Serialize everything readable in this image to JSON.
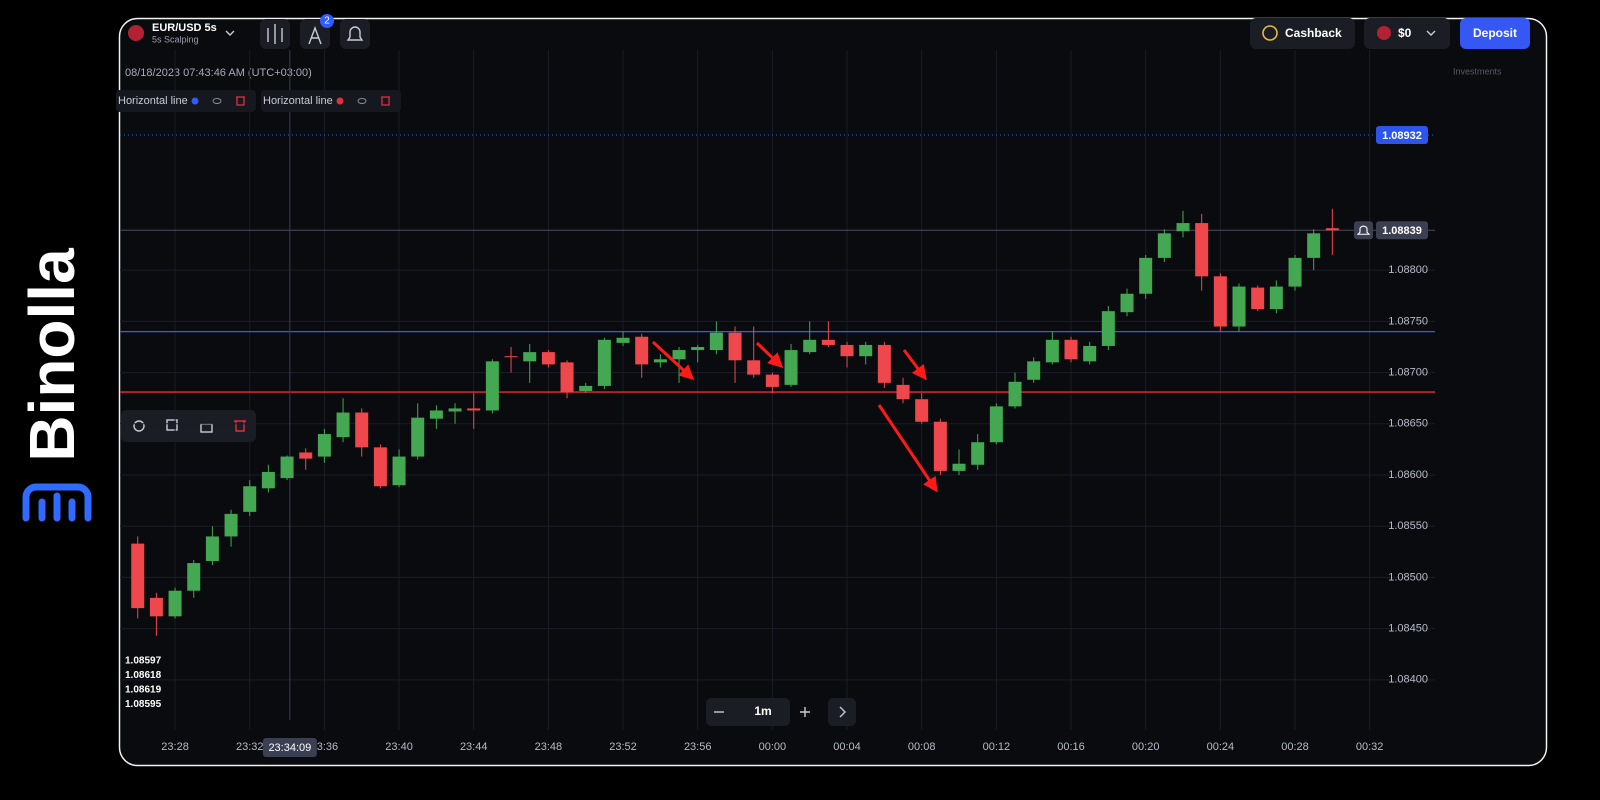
{
  "brand": "Binolla",
  "header": {
    "asset": "EUR/USD 5s",
    "mode": "5s Scalping",
    "badge": "2",
    "cashback": "Cashback",
    "balance": "$0",
    "deposit": "Deposit",
    "investments": "Investments"
  },
  "datetime": "08/18/2023 07:43:46 AM (UTC+03:00)",
  "timeframe": "1m",
  "drawings": [
    {
      "label": "Horizontal line",
      "color": "#2f5bff",
      "value": 1.0874
    },
    {
      "label": "Horizontal line",
      "color": "#e0303c",
      "value": 1.08681
    }
  ],
  "chart_data": {
    "type": "candlestick",
    "up_color": "#43a851",
    "down_color": "#f0474c",
    "x": [
      1406,
      1407,
      1408,
      1409,
      1410,
      1411,
      1412,
      1413,
      1414,
      1415,
      1416,
      1417,
      1418,
      1419,
      1420,
      1421,
      1422,
      1423,
      1424,
      1425,
      1426,
      1427,
      1428,
      1429,
      1430,
      1431,
      1432,
      1433,
      1434,
      1435,
      1436,
      1437,
      1438,
      1439,
      1440,
      1441,
      1442,
      1443,
      1444,
      1445,
      1446,
      1447,
      1448,
      1449,
      1450,
      1451,
      1452,
      1453,
      1454,
      1455,
      1456,
      1457,
      1458,
      1459,
      1460,
      1461,
      1462,
      1463,
      1464,
      1465,
      1466,
      1467,
      1468,
      1469,
      1470
    ],
    "open": [
      1.08533,
      1.0848,
      1.08462,
      1.08487,
      1.08516,
      1.0854,
      1.08564,
      1.08587,
      1.08597,
      1.08622,
      1.08618,
      1.08637,
      1.08661,
      1.08627,
      1.0859,
      1.08618,
      1.08655,
      1.08662,
      1.08665,
      1.08663,
      1.08716,
      1.08711,
      1.0872,
      1.0871,
      1.08682,
      1.08687,
      1.08729,
      1.08735,
      1.0871,
      1.08713,
      1.08722,
      1.08722,
      1.08739,
      1.08712,
      1.08698,
      1.08688,
      1.0872,
      1.08732,
      1.08727,
      1.08716,
      1.08727,
      1.08688,
      1.08674,
      1.08652,
      1.08604,
      1.0861,
      1.08632,
      1.08667,
      1.08693,
      1.0871,
      1.08732,
      1.08711,
      1.08726,
      1.08759,
      1.08777,
      1.08812,
      1.08838,
      1.08846,
      1.08794,
      1.08745,
      1.08783,
      1.08762,
      1.08784,
      1.08812,
      1.08841
    ],
    "high": [
      1.0854,
      1.08485,
      1.0849,
      1.08517,
      1.0855,
      1.08566,
      1.08595,
      1.0861,
      1.08619,
      1.08626,
      1.08645,
      1.08675,
      1.08665,
      1.0863,
      1.08625,
      1.0867,
      1.08668,
      1.0867,
      1.0868,
      1.08713,
      1.08725,
      1.08728,
      1.08722,
      1.08712,
      1.0869,
      1.08734,
      1.0874,
      1.08738,
      1.08718,
      1.08725,
      1.08727,
      1.0875,
      1.08745,
      1.08745,
      1.087,
      1.08728,
      1.0875,
      1.0875,
      1.0873,
      1.0873,
      1.0873,
      1.08695,
      1.0868,
      1.08655,
      1.08625,
      1.0864,
      1.0867,
      1.087,
      1.08715,
      1.0874,
      1.08735,
      1.0873,
      1.08765,
      1.08782,
      1.08815,
      1.0884,
      1.08858,
      1.08855,
      1.08797,
      1.08787,
      1.08785,
      1.0879,
      1.08815,
      1.0884,
      1.0886
    ],
    "low": [
      1.0846,
      1.08443,
      1.0846,
      1.0848,
      1.08512,
      1.0853,
      1.0856,
      1.08583,
      1.08595,
      1.08605,
      1.08612,
      1.08632,
      1.08618,
      1.08587,
      1.08588,
      1.08615,
      1.08645,
      1.0865,
      1.08645,
      1.0866,
      1.087,
      1.0869,
      1.08705,
      1.08675,
      1.0868,
      1.08684,
      1.08726,
      1.08695,
      1.08705,
      1.0869,
      1.0871,
      1.08718,
      1.0869,
      1.08695,
      1.0868,
      1.08686,
      1.08718,
      1.08725,
      1.08705,
      1.08708,
      1.08685,
      1.0867,
      1.0865,
      1.086,
      1.086,
      1.08605,
      1.0863,
      1.08665,
      1.0869,
      1.08708,
      1.0871,
      1.08708,
      1.08722,
      1.08755,
      1.08772,
      1.08808,
      1.08832,
      1.0878,
      1.0874,
      1.0874,
      1.0876,
      1.08758,
      1.0878,
      1.088,
      1.08815
    ],
    "close": [
      1.0847,
      1.08462,
      1.08487,
      1.08514,
      1.0854,
      1.08562,
      1.08589,
      1.08603,
      1.08618,
      1.08616,
      1.0864,
      1.08661,
      1.08627,
      1.08589,
      1.08618,
      1.08656,
      1.08663,
      1.08665,
      1.08663,
      1.08711,
      1.08715,
      1.0872,
      1.08708,
      1.08681,
      1.08687,
      1.08732,
      1.08734,
      1.08708,
      1.08713,
      1.08722,
      1.08725,
      1.08739,
      1.08712,
      1.08698,
      1.08686,
      1.08722,
      1.08732,
      1.08727,
      1.08716,
      1.08727,
      1.0869,
      1.08674,
      1.08652,
      1.08604,
      1.08611,
      1.08632,
      1.08667,
      1.08691,
      1.08711,
      1.08732,
      1.08713,
      1.08726,
      1.0876,
      1.08777,
      1.08812,
      1.08836,
      1.08846,
      1.08794,
      1.08745,
      1.08784,
      1.08762,
      1.08784,
      1.08812,
      1.08836,
      1.08839
    ],
    "xlim": [
      1405.05,
      1475.5
    ],
    "ylim": [
      1.08351,
      1.09015
    ],
    "xticks": [
      {
        "value": 1408,
        "label": "23:28"
      },
      {
        "value": 1412,
        "label": "23:32"
      },
      {
        "value": 1416,
        "label": "23:36"
      },
      {
        "value": 1420,
        "label": "23:40"
      },
      {
        "value": 1424,
        "label": "23:44"
      },
      {
        "value": 1428,
        "label": "23:48"
      },
      {
        "value": 1432,
        "label": "23:52"
      },
      {
        "value": 1436,
        "label": "23:56"
      },
      {
        "value": 1440,
        "label": "00:00"
      },
      {
        "value": 1444,
        "label": "00:04"
      },
      {
        "value": 1448,
        "label": "00:08"
      },
      {
        "value": 1452,
        "label": "00:12"
      },
      {
        "value": 1456,
        "label": "00:16"
      },
      {
        "value": 1460,
        "label": "00:20"
      },
      {
        "value": 1464,
        "label": "00:24"
      },
      {
        "value": 1468,
        "label": "00:28"
      },
      {
        "value": 1472,
        "label": "00:32"
      }
    ],
    "yticks": [
      {
        "value": 1.084,
        "label": "1.08400"
      },
      {
        "value": 1.0845,
        "label": "1.08450"
      },
      {
        "value": 1.085,
        "label": "1.08500"
      },
      {
        "value": 1.0855,
        "label": "1.08550"
      },
      {
        "value": 1.086,
        "label": "1.08600"
      },
      {
        "value": 1.0865,
        "label": "1.08650"
      },
      {
        "value": 1.087,
        "label": "1.08700"
      },
      {
        "value": 1.0875,
        "label": "1.08750"
      },
      {
        "value": 1.088,
        "label": "1.08800"
      }
    ],
    "grid": true,
    "current_price": 1.08839,
    "alert_price": 1.08932,
    "crosshair": {
      "value": 1414.15,
      "label": "23:34:09"
    },
    "ohlc_legend": [
      1.08597,
      1.08618,
      1.08619,
      1.08595
    ]
  }
}
